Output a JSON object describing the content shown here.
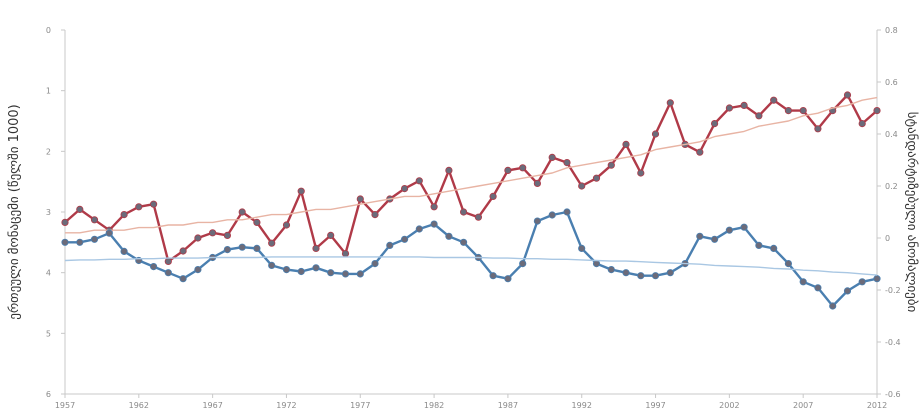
{
  "chart_data": {
    "type": "line",
    "title": "",
    "xlabel": "",
    "ylabel_left": "ერთეული მონაცემი (წელში 1000)",
    "ylabel_right": "სტანდარტიზებული ანომალიები",
    "x": [
      1957,
      1958,
      1959,
      1960,
      1961,
      1962,
      1963,
      1964,
      1965,
      1966,
      1967,
      1968,
      1969,
      1970,
      1971,
      1972,
      1973,
      1974,
      1975,
      1976,
      1977,
      1978,
      1979,
      1980,
      1981,
      1982,
      1983,
      1984,
      1985,
      1986,
      1987,
      1988,
      1989,
      1990,
      1991,
      1992,
      1993,
      1994,
      1995,
      1996,
      1997,
      1998,
      1999,
      2000,
      2001,
      2002,
      2003,
      2004,
      2005,
      2006,
      2007,
      2008,
      2009,
      2010,
      2011,
      2012
    ],
    "x_ticks": [
      "1957",
      "1962",
      "1967",
      "1972",
      "1977",
      "1982",
      "1987",
      "1992",
      "1997",
      "2002",
      "2007",
      "2012"
    ],
    "y_left_ticks": [
      "0",
      "1",
      "2",
      "3",
      "4",
      "5",
      "6"
    ],
    "y_left_range": [
      0,
      6
    ],
    "y_left_inverted": true,
    "y_right_ticks": [
      "-0.6",
      "-0.4",
      "-0.2",
      "0",
      "0.2",
      "0.4",
      "0.6",
      "0.8"
    ],
    "y_right_range": [
      -0.6,
      0.8
    ],
    "grid": false,
    "series": [
      {
        "axis": "right",
        "color": "#b03a48",
        "values": [
          0.06,
          0.11,
          0.07,
          0.03,
          0.09,
          0.12,
          0.13,
          -0.09,
          -0.05,
          0.0,
          0.02,
          0.01,
          0.1,
          0.06,
          -0.02,
          0.05,
          0.18,
          -0.04,
          0.01,
          -0.06,
          0.15,
          0.09,
          0.15,
          0.19,
          0.22,
          0.12,
          0.26,
          0.1,
          0.08,
          0.16,
          0.26,
          0.27,
          0.21,
          0.31,
          0.29,
          0.2,
          0.23,
          0.28,
          0.36,
          0.25,
          0.4,
          0.52,
          0.36,
          0.33,
          0.44,
          0.5,
          0.51,
          0.47,
          0.53,
          0.49,
          0.49,
          0.42,
          0.49,
          0.55,
          0.44,
          0.49
        ]
      },
      {
        "axis": "right",
        "color": "#e8b4a4",
        "trend": true,
        "values": [
          0.02,
          0.02,
          0.03,
          0.03,
          0.03,
          0.04,
          0.04,
          0.05,
          0.05,
          0.06,
          0.06,
          0.07,
          0.07,
          0.08,
          0.09,
          0.09,
          0.1,
          0.11,
          0.11,
          0.12,
          0.13,
          0.14,
          0.15,
          0.16,
          0.16,
          0.17,
          0.18,
          0.19,
          0.2,
          0.21,
          0.22,
          0.23,
          0.24,
          0.25,
          0.27,
          0.28,
          0.29,
          0.3,
          0.31,
          0.32,
          0.34,
          0.35,
          0.36,
          0.37,
          0.39,
          0.4,
          0.41,
          0.43,
          0.44,
          0.45,
          0.47,
          0.48,
          0.5,
          0.51,
          0.53,
          0.54
        ]
      },
      {
        "axis": "left",
        "color": "#4a7fb0",
        "values": [
          3.5,
          3.5,
          3.45,
          3.35,
          3.65,
          3.8,
          3.9,
          4.0,
          4.1,
          3.95,
          3.75,
          3.62,
          3.58,
          3.6,
          3.88,
          3.95,
          3.98,
          3.92,
          4.0,
          4.02,
          4.02,
          3.85,
          3.55,
          3.45,
          3.28,
          3.2,
          3.4,
          3.5,
          3.75,
          4.05,
          4.1,
          3.85,
          3.15,
          3.05,
          3.0,
          3.6,
          3.85,
          3.95,
          4.0,
          4.05,
          4.05,
          4.0,
          3.85,
          3.4,
          3.45,
          3.3,
          3.25,
          3.55,
          3.6,
          3.85,
          4.15,
          4.25,
          4.55,
          4.3,
          4.15,
          4.1
        ]
      },
      {
        "axis": "left",
        "color": "#a9c7e3",
        "trend": true,
        "values": [
          3.8,
          3.79,
          3.79,
          3.78,
          3.78,
          3.77,
          3.77,
          3.76,
          3.76,
          3.76,
          3.75,
          3.75,
          3.75,
          3.75,
          3.74,
          3.74,
          3.74,
          3.74,
          3.74,
          3.74,
          3.74,
          3.74,
          3.74,
          3.74,
          3.74,
          3.75,
          3.75,
          3.75,
          3.75,
          3.76,
          3.76,
          3.77,
          3.77,
          3.78,
          3.78,
          3.79,
          3.8,
          3.81,
          3.81,
          3.82,
          3.83,
          3.84,
          3.85,
          3.86,
          3.88,
          3.89,
          3.9,
          3.91,
          3.93,
          3.94,
          3.96,
          3.97,
          3.99,
          4.0,
          4.02,
          4.04
        ]
      }
    ]
  }
}
